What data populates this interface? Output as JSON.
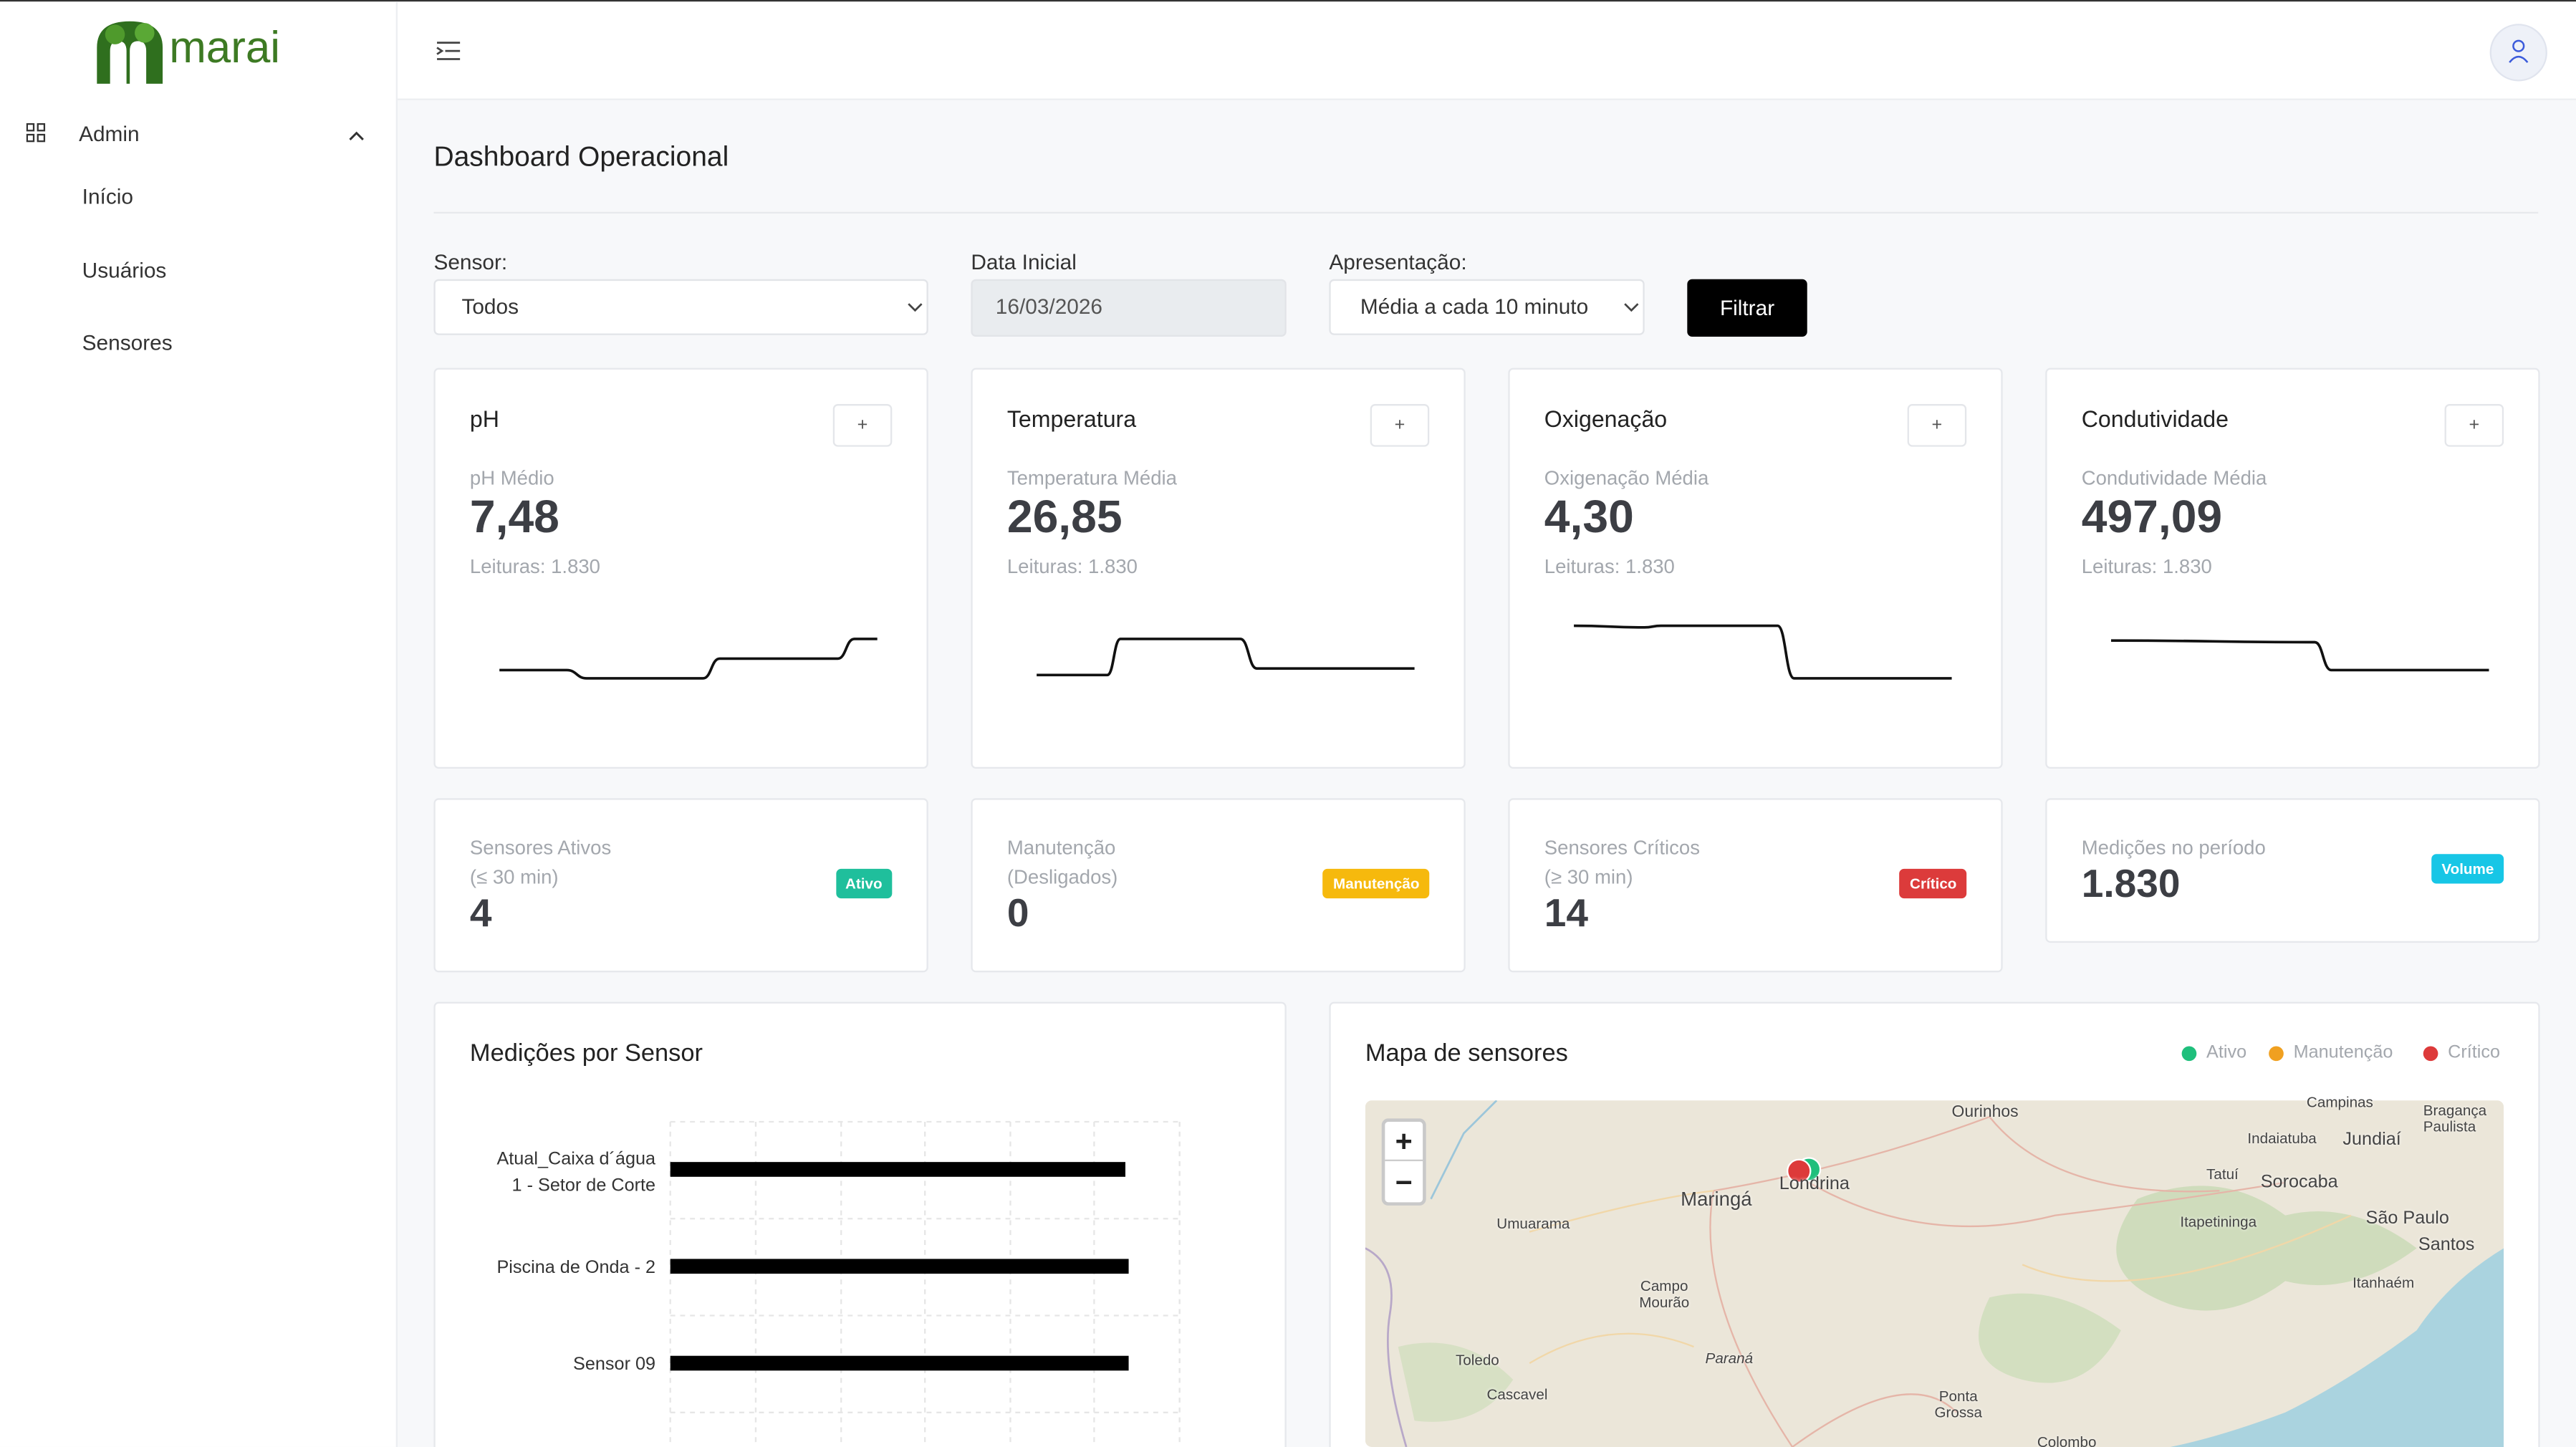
{
  "logo": "marai",
  "sidebar": {
    "section": "Admin",
    "items": [
      "Início",
      "Usuários",
      "Sensores"
    ]
  },
  "header": {
    "title": "Dashboard Operacional"
  },
  "filters": {
    "sensor_label": "Sensor:",
    "sensor_value": "Todos",
    "date_label": "Data Inicial",
    "date_value": "16/03/2026",
    "mode_label": "Apresentação:",
    "mode_value": "Média a cada 10 minuto",
    "button": "Filtrar"
  },
  "metric_cards": [
    {
      "title": "pH",
      "button": "+",
      "label": "pH Médio",
      "value": "7,48",
      "readings": "Leituras: 1.830"
    },
    {
      "title": "Temperatura",
      "button": "+",
      "label": "Temperatura Média",
      "value": "26,85",
      "readings": "Leituras: 1.830"
    },
    {
      "title": "Oxigenação",
      "button": "+",
      "label": "Oxigenação Média",
      "value": "4,30",
      "readings": "Leituras: 1.830"
    },
    {
      "title": "Condutividade",
      "button": "+",
      "label": "Condutividade Média",
      "value": "497,09",
      "readings": "Leituras: 1.830"
    }
  ],
  "status_cards": [
    {
      "label": "Sensores Ativos",
      "sub": "(≤ 30 min)",
      "value": "4",
      "badge": "Ativo",
      "color": "#1fbf9c"
    },
    {
      "label": "Manutenção",
      "sub": "(Desligados)",
      "value": "0",
      "badge": "Manutenção",
      "color": "#f6b90d"
    },
    {
      "label": "Sensores Críticos",
      "sub": "(≥ 30 min)",
      "value": "14",
      "badge": "Crítico",
      "color": "#dc3b3b"
    },
    {
      "label": "Medições no período",
      "value": "1.830",
      "badge": "Volume",
      "color": "#17c6e6"
    }
  ],
  "bar_panel": {
    "title": "Medições por Sensor",
    "sensors": [
      "Atual_Caixa d´água 1 - Setor de Corte",
      "Piscina de Onda - 2",
      "Sensor 09"
    ]
  },
  "map_panel": {
    "title": "Mapa de sensores",
    "legend": [
      {
        "name": "Ativo",
        "color": "#1fbf7c"
      },
      {
        "name": "Manutenção",
        "color": "#f0a020"
      },
      {
        "name": "Crítico",
        "color": "#dd3a3a"
      }
    ],
    "zoom_in": "+",
    "zoom_out": "−",
    "places": [
      "Ourinhos",
      "Indaiatuba",
      "Jundiaí",
      "Campinas",
      "Bragança Paulista",
      "Maringá",
      "Londrina",
      "Umuarama",
      "Tatuí",
      "Sorocaba",
      "Itapetininga",
      "São Paulo",
      "Santos",
      "Campo Mourão",
      "Itanhaém",
      "Toledo",
      "Paraná",
      "Cascavel",
      "Ponta Grossa",
      "Colombo"
    ]
  }
}
